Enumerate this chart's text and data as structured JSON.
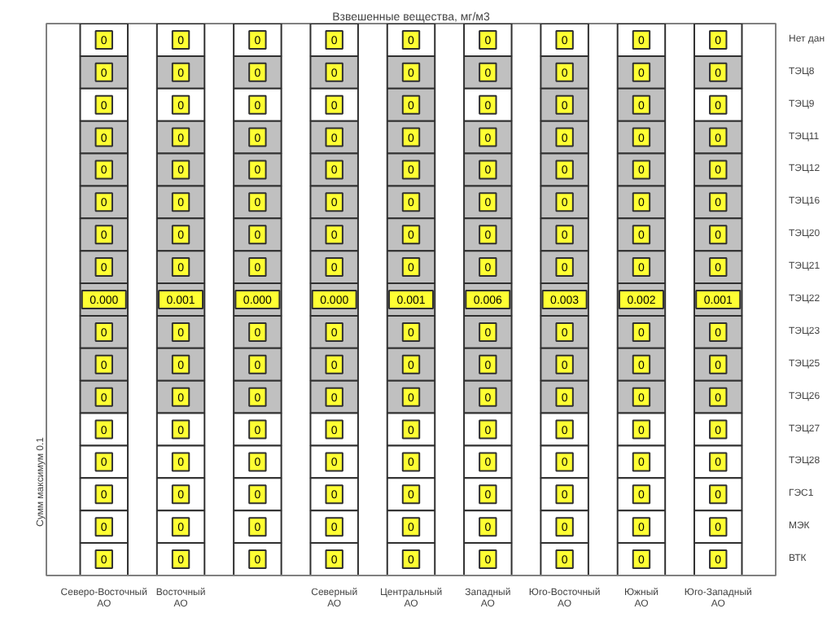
{
  "chart_data": {
    "type": "heatmap",
    "title": "Взвешенные вещества, мг/м3",
    "categories": [
      "Северо-Восточный АО",
      "Восточный АО",
      null,
      "Северный АО",
      "Центральный АО",
      "Западный АО",
      "Юго-Восточный АО",
      "Южный АО",
      "Юго-Западный АО"
    ],
    "y_categories": [
      "Нет дан",
      "ТЭЦ8",
      "ТЭЦ9",
      "ТЭЦ11",
      "ТЭЦ12",
      "ТЭЦ16",
      "ТЭЦ20",
      "ТЭЦ21",
      "ТЭЦ22",
      "ТЭЦ23",
      "ТЭЦ25",
      "ТЭЦ26",
      "ТЭЦ27",
      "ТЭЦ28",
      "ГЭС1",
      "МЭК",
      "ВТК"
    ],
    "cells": [
      [
        0,
        0,
        0,
        0,
        0,
        0,
        0,
        0,
        0
      ],
      [
        0,
        0,
        0,
        0,
        0,
        0,
        0,
        0,
        0
      ],
      [
        0,
        0,
        0,
        0,
        0,
        0,
        0,
        0,
        0
      ],
      [
        0,
        0,
        0,
        0,
        0,
        0,
        0,
        0,
        0
      ],
      [
        0,
        0,
        0,
        0,
        0,
        0,
        0,
        0,
        0
      ],
      [
        0,
        0,
        0,
        0,
        0,
        0,
        0,
        0,
        0
      ],
      [
        0,
        0,
        0,
        0,
        0,
        0,
        0,
        0,
        0
      ],
      [
        0,
        0,
        0,
        0,
        0,
        0,
        0,
        0,
        0
      ],
      [
        0.0,
        0.001,
        0.0,
        0.0,
        0.001,
        0.006,
        0.003,
        0.002,
        0.001
      ],
      [
        0,
        0,
        0,
        0,
        0,
        0,
        0,
        0,
        0
      ],
      [
        0,
        0,
        0,
        0,
        0,
        0,
        0,
        0,
        0
      ],
      [
        0,
        0,
        0,
        0,
        0,
        0,
        0,
        0,
        0
      ],
      [
        0,
        0,
        0,
        0,
        0,
        0,
        0,
        0,
        0
      ],
      [
        0,
        0,
        0,
        0,
        0,
        0,
        0,
        0,
        0
      ],
      [
        0,
        0,
        0,
        0,
        0,
        0,
        0,
        0,
        0
      ],
      [
        0,
        0,
        0,
        0,
        0,
        0,
        0,
        0,
        0
      ],
      [
        0,
        0,
        0,
        0,
        0,
        0,
        0,
        0,
        0
      ]
    ],
    "cell_labels": [
      [
        "0",
        "0",
        "0",
        "0",
        "0",
        "0",
        "0",
        "0",
        "0"
      ],
      [
        "0",
        "0",
        "0",
        "0",
        "0",
        "0",
        "0",
        "0",
        "0"
      ],
      [
        "0",
        "0",
        "0",
        "0",
        "0",
        "0",
        "0",
        "0",
        "0"
      ],
      [
        "0",
        "0",
        "0",
        "0",
        "0",
        "0",
        "0",
        "0",
        "0"
      ],
      [
        "0",
        "0",
        "0",
        "0",
        "0",
        "0",
        "0",
        "0",
        "0"
      ],
      [
        "0",
        "0",
        "0",
        "0",
        "0",
        "0",
        "0",
        "0",
        "0"
      ],
      [
        "0",
        "0",
        "0",
        "0",
        "0",
        "0",
        "0",
        "0",
        "0"
      ],
      [
        "0",
        "0",
        "0",
        "0",
        "0",
        "0",
        "0",
        "0",
        "0"
      ],
      [
        "0.000",
        "0.001",
        "0.000",
        "0.000",
        "0.001",
        "0.006",
        "0.003",
        "0.002",
        "0.001"
      ],
      [
        "0",
        "0",
        "0",
        "0",
        "0",
        "0",
        "0",
        "0",
        "0"
      ],
      [
        "0",
        "0",
        "0",
        "0",
        "0",
        "0",
        "0",
        "0",
        "0"
      ],
      [
        "0",
        "0",
        "0",
        "0",
        "0",
        "0",
        "0",
        "0",
        "0"
      ],
      [
        "0",
        "0",
        "0",
        "0",
        "0",
        "0",
        "0",
        "0",
        "0"
      ],
      [
        "0",
        "0",
        "0",
        "0",
        "0",
        "0",
        "0",
        "0",
        "0"
      ],
      [
        "0",
        "0",
        "0",
        "0",
        "0",
        "0",
        "0",
        "0",
        "0"
      ],
      [
        "0",
        "0",
        "0",
        "0",
        "0",
        "0",
        "0",
        "0",
        "0"
      ],
      [
        "0",
        "0",
        "0",
        "0",
        "0",
        "0",
        "0",
        "0",
        "0"
      ]
    ],
    "colors": [
      [
        "#ffffff",
        "#ffffff",
        "#ffffff",
        "#ffffff",
        "#ffffff",
        "#ffffff",
        "#ffffff",
        "#ffffff",
        "#ffffff"
      ],
      [
        "#c0c0c0",
        "#c0c0c0",
        "#c0c0c0",
        "#c0c0c0",
        "#c0c0c0",
        "#c0c0c0",
        "#c0c0c0",
        "#c0c0c0",
        "#c0c0c0"
      ],
      [
        "#ffffff",
        "#ffffff",
        "#ffffff",
        "#ffffff",
        "#c0c0c0",
        "#ffffff",
        "#c0c0c0",
        "#c0c0c0",
        "#ffffff"
      ],
      [
        "#c0c0c0",
        "#c0c0c0",
        "#c0c0c0",
        "#c0c0c0",
        "#c0c0c0",
        "#c0c0c0",
        "#c0c0c0",
        "#c0c0c0",
        "#c0c0c0"
      ],
      [
        "#c0c0c0",
        "#c0c0c0",
        "#c0c0c0",
        "#c0c0c0",
        "#c0c0c0",
        "#c0c0c0",
        "#c0c0c0",
        "#c0c0c0",
        "#c0c0c0"
      ],
      [
        "#c0c0c0",
        "#c0c0c0",
        "#c0c0c0",
        "#c0c0c0",
        "#c0c0c0",
        "#c0c0c0",
        "#c0c0c0",
        "#c0c0c0",
        "#c0c0c0"
      ],
      [
        "#c0c0c0",
        "#c0c0c0",
        "#c0c0c0",
        "#c0c0c0",
        "#c0c0c0",
        "#c0c0c0",
        "#c0c0c0",
        "#c0c0c0",
        "#c0c0c0"
      ],
      [
        "#c0c0c0",
        "#c0c0c0",
        "#c0c0c0",
        "#c0c0c0",
        "#c0c0c0",
        "#c0c0c0",
        "#c0c0c0",
        "#c0c0c0",
        "#c0c0c0"
      ],
      [
        "#c0c0c0",
        "#c0c0c0",
        "#c0c0c0",
        "#c0c0c0",
        "#c0c0c0",
        "#c0c0c0",
        "#c0c0c0",
        "#c0c0c0",
        "#c0c0c0"
      ],
      [
        "#c0c0c0",
        "#c0c0c0",
        "#c0c0c0",
        "#c0c0c0",
        "#c0c0c0",
        "#c0c0c0",
        "#c0c0c0",
        "#c0c0c0",
        "#c0c0c0"
      ],
      [
        "#c0c0c0",
        "#c0c0c0",
        "#c0c0c0",
        "#c0c0c0",
        "#c0c0c0",
        "#c0c0c0",
        "#c0c0c0",
        "#c0c0c0",
        "#c0c0c0"
      ],
      [
        "#c0c0c0",
        "#c0c0c0",
        "#c0c0c0",
        "#c0c0c0",
        "#c0c0c0",
        "#c0c0c0",
        "#c0c0c0",
        "#c0c0c0",
        "#c0c0c0"
      ],
      [
        "#ffffff",
        "#ffffff",
        "#ffffff",
        "#ffffff",
        "#ffffff",
        "#ffffff",
        "#ffffff",
        "#ffffff",
        "#ffffff"
      ],
      [
        "#ffffff",
        "#ffffff",
        "#ffffff",
        "#ffffff",
        "#ffffff",
        "#ffffff",
        "#ffffff",
        "#ffffff",
        "#ffffff"
      ],
      [
        "#ffffff",
        "#ffffff",
        "#ffffff",
        "#ffffff",
        "#ffffff",
        "#ffffff",
        "#ffffff",
        "#ffffff",
        "#ffffff"
      ],
      [
        "#ffffff",
        "#ffffff",
        "#ffffff",
        "#ffffff",
        "#ffffff",
        "#ffffff",
        "#ffffff",
        "#ffffff",
        "#ffffff"
      ],
      [
        "#ffffff",
        "#ffffff",
        "#ffffff",
        "#ffffff",
        "#ffffff",
        "#ffffff",
        "#ffffff",
        "#ffffff",
        "#ffffff"
      ]
    ],
    "annotations": [
      "Сумм максимум 0.1"
    ]
  }
}
